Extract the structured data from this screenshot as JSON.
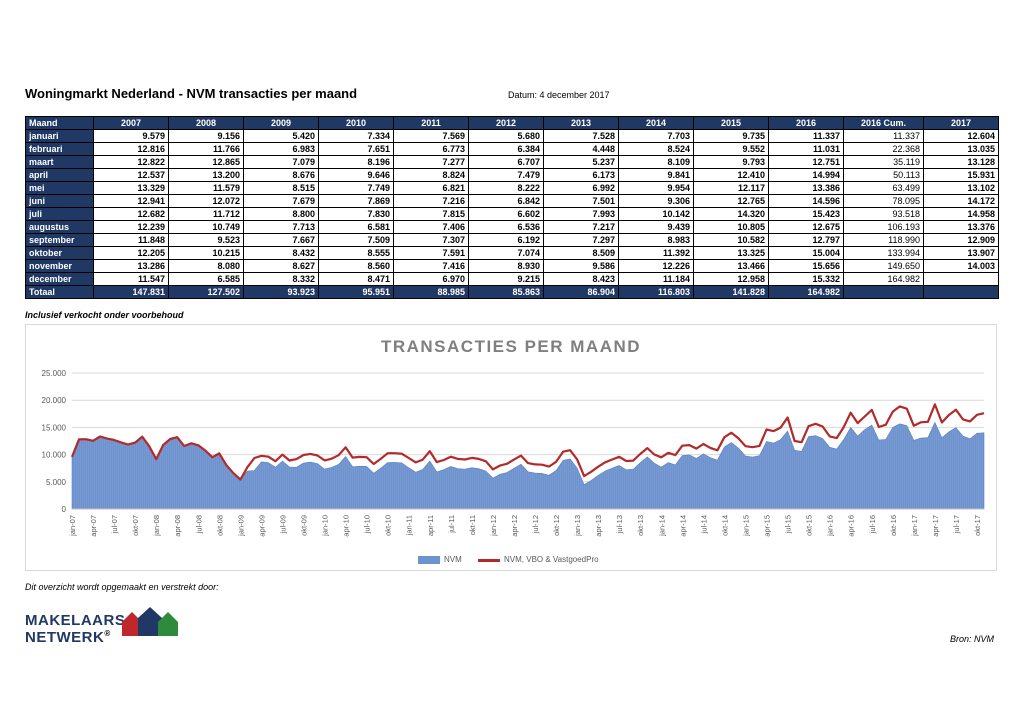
{
  "header": {
    "title": "Woningmarkt Nederland - NVM transacties per maand",
    "date": "Datum:  4 december 2017"
  },
  "table": {
    "columns": [
      "Maand",
      "2007",
      "2008",
      "2009",
      "2010",
      "2011",
      "2012",
      "2013",
      "2014",
      "2015",
      "2016",
      "2016 Cum.",
      "2017"
    ],
    "rows": [
      [
        "januari",
        "9.579",
        "9.156",
        "5.420",
        "7.334",
        "7.569",
        "5.680",
        "7.528",
        "7.703",
        "9.735",
        "11.337",
        "11.337",
        "12.604"
      ],
      [
        "februari",
        "12.816",
        "11.766",
        "6.983",
        "7.651",
        "6.773",
        "6.384",
        "4.448",
        "8.524",
        "9.552",
        "11.031",
        "22.368",
        "13.035"
      ],
      [
        "maart",
        "12.822",
        "12.865",
        "7.079",
        "8.196",
        "7.277",
        "6.707",
        "5.237",
        "8.109",
        "9.793",
        "12.751",
        "35.119",
        "13.128"
      ],
      [
        "april",
        "12.537",
        "13.200",
        "8.676",
        "9.646",
        "8.824",
        "7.479",
        "6.173",
        "9.841",
        "12.410",
        "14.994",
        "50.113",
        "15.931"
      ],
      [
        "mei",
        "13.329",
        "11.579",
        "8.515",
        "7.749",
        "6.821",
        "8.222",
        "6.992",
        "9.954",
        "12.117",
        "13.386",
        "63.499",
        "13.102"
      ],
      [
        "juni",
        "12.941",
        "12.072",
        "7.679",
        "7.869",
        "7.216",
        "6.842",
        "7.501",
        "9.306",
        "12.765",
        "14.596",
        "78.095",
        "14.172"
      ],
      [
        "juli",
        "12.682",
        "11.712",
        "8.800",
        "7.830",
        "7.815",
        "6.602",
        "7.993",
        "10.142",
        "14.320",
        "15.423",
        "93.518",
        "14.958"
      ],
      [
        "augustus",
        "12.239",
        "10.749",
        "7.713",
        "6.581",
        "7.406",
        "6.536",
        "7.217",
        "9.439",
        "10.805",
        "12.675",
        "106.193",
        "13.376"
      ],
      [
        "september",
        "11.848",
        "9.523",
        "7.667",
        "7.509",
        "7.307",
        "6.192",
        "7.297",
        "8.983",
        "10.582",
        "12.797",
        "118.990",
        "12.909"
      ],
      [
        "oktober",
        "12.205",
        "10.215",
        "8.432",
        "8.555",
        "7.591",
        "7.074",
        "8.509",
        "11.392",
        "13.325",
        "15.004",
        "133.994",
        "13.907"
      ],
      [
        "november",
        "13.286",
        "8.080",
        "8.627",
        "8.560",
        "7.416",
        "8.930",
        "9.586",
        "12.226",
        "13.466",
        "15.656",
        "149.650",
        "14.003"
      ],
      [
        "december",
        "11.547",
        "6.585",
        "8.332",
        "8.471",
        "6.970",
        "9.215",
        "8.423",
        "11.184",
        "12.958",
        "15.332",
        "164.982",
        ""
      ]
    ],
    "total": [
      "Totaal",
      "147.831",
      "127.502",
      "93.923",
      "95.951",
      "88.985",
      "85.863",
      "86.904",
      "116.803",
      "141.828",
      "164.982",
      "",
      ""
    ]
  },
  "note": "Inclusief verkocht onder voorbehoud",
  "chart_data": {
    "type": "area",
    "title": "TRANSACTIES PER MAAND",
    "xlabel": "",
    "ylabel": "",
    "ylim": [
      0,
      25000
    ],
    "yticks": [
      "0",
      "5.000",
      "10.000",
      "15.000",
      "20.000",
      "25.000"
    ],
    "xtick_labels": [
      "jan-07",
      "apr-07",
      "jul-07",
      "okt-07",
      "jan-08",
      "apr-08",
      "jul-08",
      "okt-08",
      "jan-09",
      "apr-09",
      "jul-09",
      "okt-09",
      "jan-10",
      "apr-10",
      "jul-10",
      "okt-10",
      "jan-11",
      "apr-11",
      "jul-11",
      "okt-11",
      "jan-12",
      "apr-12",
      "jul-12",
      "okt-12",
      "jan-13",
      "apr-13",
      "jul-13",
      "okt-13",
      "jan-14",
      "apr-14",
      "jul-14",
      "okt-14",
      "jan-15",
      "apr-15",
      "jul-15",
      "okt-15",
      "jan-16",
      "apr-16",
      "jul-16",
      "okt-16",
      "jan-17",
      "apr-17",
      "jul-17",
      "okt-17"
    ],
    "grid": true,
    "legend_position": "bottom",
    "line_offset_2007_2008": 0,
    "series": [
      {
        "name": "NVM",
        "type": "area",
        "color": "#6f93cf",
        "values": [
          9579,
          12816,
          12822,
          12537,
          13329,
          12941,
          12682,
          12239,
          11848,
          12205,
          13286,
          11547,
          9156,
          11766,
          12865,
          13200,
          11579,
          12072,
          11712,
          10749,
          9523,
          10215,
          8080,
          6585,
          5420,
          6983,
          7079,
          8676,
          8515,
          7679,
          8800,
          7713,
          7667,
          8432,
          8627,
          8332,
          7334,
          7651,
          8196,
          9646,
          7749,
          7869,
          7830,
          6581,
          7509,
          8555,
          8560,
          8471,
          7569,
          6773,
          7277,
          8824,
          6821,
          7216,
          7815,
          7406,
          7307,
          7591,
          7416,
          6970,
          5680,
          6384,
          6707,
          7479,
          8222,
          6842,
          6602,
          6536,
          6192,
          7074,
          8930,
          9215,
          7528,
          4448,
          5237,
          6173,
          6992,
          7501,
          7993,
          7217,
          7297,
          8509,
          9586,
          8423,
          7703,
          8524,
          8109,
          9841,
          9954,
          9306,
          10142,
          9439,
          8983,
          11392,
          12226,
          11184,
          9735,
          9552,
          9793,
          12410,
          12117,
          12765,
          14320,
          10805,
          10582,
          13325,
          13466,
          12958,
          11337,
          11031,
          12751,
          14994,
          13386,
          14596,
          15423,
          12675,
          12797,
          15004,
          15656,
          15332,
          12604,
          13035,
          13128,
          15931,
          13102,
          14172,
          14958,
          13376,
          12909,
          13907,
          14003
        ]
      },
      {
        "name": "NVM, VBO & VastgoedPro",
        "type": "line",
        "color": "#b22a2a",
        "values": [
          9579,
          12816,
          12822,
          12537,
          13329,
          12941,
          12682,
          12239,
          11848,
          12205,
          13286,
          11547,
          9156,
          11766,
          12865,
          13200,
          11579,
          12072,
          11712,
          10749,
          9523,
          10215,
          8080,
          6585,
          5420,
          7683,
          9379,
          9776,
          9615,
          8779,
          10000,
          8913,
          9167,
          9932,
          10127,
          9832,
          8934,
          9251,
          9896,
          11346,
          9449,
          9569,
          9530,
          8281,
          9209,
          10255,
          10260,
          10171,
          9369,
          8573,
          9077,
          10624,
          8621,
          9016,
          9615,
          9206,
          9107,
          9391,
          9216,
          8770,
          7280,
          7984,
          8307,
          9079,
          9822,
          8442,
          8202,
          8136,
          7792,
          8674,
          10530,
          10815,
          9128,
          6048,
          6837,
          7773,
          8592,
          9101,
          9593,
          8817,
          8897,
          10109,
          11186,
          10023,
          9503,
          10324,
          9909,
          11641,
          11754,
          11106,
          11942,
          11239,
          10783,
          13192,
          14026,
          12984,
          11535,
          11352,
          11593,
          14610,
          14317,
          14965,
          16820,
          12505,
          12282,
          15225,
          15666,
          15158,
          13337,
          13031,
          15051,
          17694,
          15786,
          16996,
          18223,
          15075,
          15497,
          17904,
          18856,
          18432,
          15304,
          15935,
          16028,
          19231,
          15902,
          17272,
          18258,
          16476,
          16109,
          17307,
          17603
        ]
      }
    ]
  },
  "footer": {
    "note": "Dit overzicht wordt opgemaakt en verstrekt door:",
    "logo_word1": "MAKELAARS",
    "logo_word2": "NETWERK",
    "logo_mark": "®",
    "source": "Bron: NVM"
  }
}
